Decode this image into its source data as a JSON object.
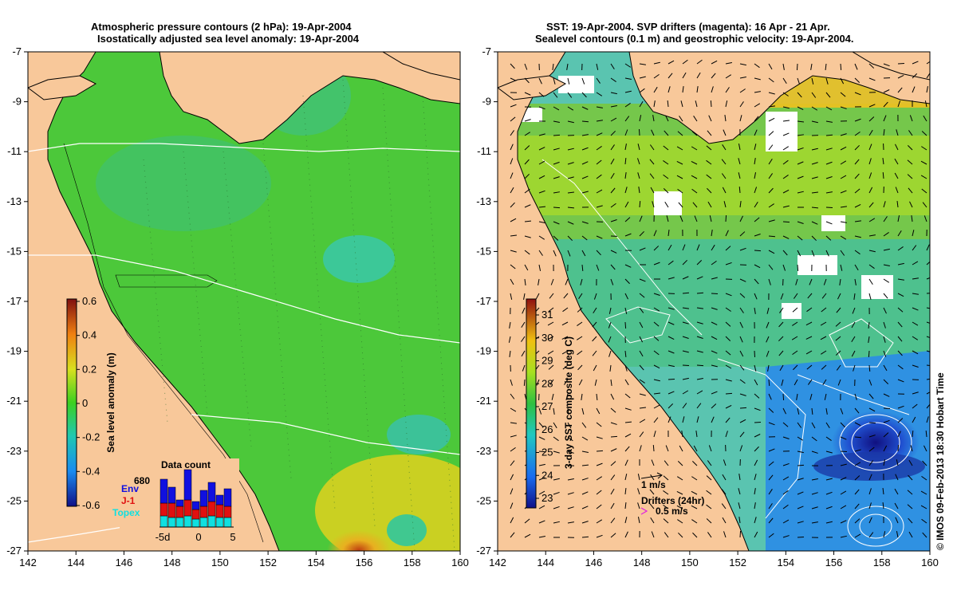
{
  "left_panel": {
    "title_line1": "Atmospheric pressure contours (2 hPa): 19-Apr-2004",
    "title_line2": "Isostatically adjusted sea level anomaly: 19-Apr-2004",
    "colorbar_label": "Sea level anomaly (m)",
    "colorbar_ticks": [
      "0.6",
      "0.4",
      "0.2",
      "0",
      "-0.2",
      "-0.4",
      "-0.6"
    ],
    "data_count": {
      "title": "Data count",
      "max_label": "680",
      "series": [
        {
          "name": "Env",
          "color": "#1010e0"
        },
        {
          "name": "J-1",
          "color": "#e01010"
        },
        {
          "name": "Topex",
          "color": "#10e0e0"
        }
      ],
      "x_ticks": [
        "-5d",
        "0",
        "5"
      ]
    }
  },
  "right_panel": {
    "title_line1": "SST: 19-Apr-2004. SVP drifters (magenta): 16 Apr - 21 Apr.",
    "title_line2": "Sealevel contours (0.1 m) and geostrophic velocity: 19-Apr-2004.",
    "colorbar_label": "3-day SST composite (deg C)",
    "colorbar_ticks": [
      "31",
      "30",
      "29",
      "28",
      "27",
      "26",
      "25",
      "24",
      "23"
    ],
    "velocity_legend": "1 m/s",
    "drifter_legend_title": "Drifters (24hr)",
    "drifter_legend_speed": "0.5 m/s"
  },
  "axes": {
    "lon_ticks": [
      "142",
      "144",
      "146",
      "148",
      "150",
      "152",
      "154",
      "156",
      "158",
      "160"
    ],
    "lat_ticks": [
      "-7",
      "-9",
      "-11",
      "-13",
      "-15",
      "-17",
      "-19",
      "-21",
      "-23",
      "-25",
      "-27"
    ]
  },
  "credit": "© IMOS 09-Feb-2013 18:30 Hobart Time",
  "colors": {
    "land": "#f8c89a",
    "ocean_left": "#4cc83a",
    "ocean_right": "#5ac4b0"
  }
}
